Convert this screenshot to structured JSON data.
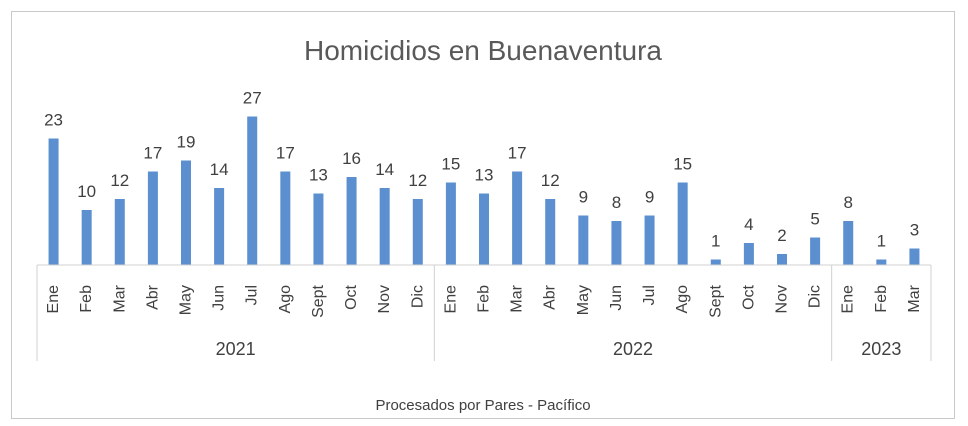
{
  "chart_data": {
    "type": "bar",
    "title": "Homicidios en Buenaventura",
    "footer": "Procesados por Pares - Pacífico",
    "bar_color": "#5B8FCF",
    "ylim": [
      0,
      30
    ],
    "grid": false,
    "legend": "none",
    "categories": [
      "Ene",
      "Feb",
      "Mar",
      "Abr",
      "May",
      "Jun",
      "Jul",
      "Ago",
      "Sept",
      "Oct",
      "Nov",
      "Dic",
      "Ene",
      "Feb",
      "Mar",
      "Abr",
      "May",
      "Jun",
      "Jul",
      "Ago",
      "Sept",
      "Oct",
      "Nov",
      "Dic",
      "Ene",
      "Feb",
      "Mar"
    ],
    "values": [
      23,
      10,
      12,
      17,
      19,
      14,
      27,
      17,
      13,
      16,
      14,
      12,
      15,
      13,
      17,
      12,
      9,
      8,
      9,
      15,
      1,
      4,
      2,
      5,
      8,
      1,
      3
    ],
    "value_labels": [
      "23",
      "10",
      "12",
      "17",
      "19",
      "14",
      "27",
      "17",
      "13",
      "16",
      "14",
      "12",
      "15",
      "13",
      "17",
      "12",
      "9",
      "8",
      "9",
      "15",
      "1",
      "4",
      "2",
      "5",
      "8",
      "1",
      "3"
    ],
    "groups": [
      {
        "label": "2021",
        "count": 12
      },
      {
        "label": "2022",
        "count": 12
      },
      {
        "label": "2023",
        "count": 3
      }
    ]
  }
}
